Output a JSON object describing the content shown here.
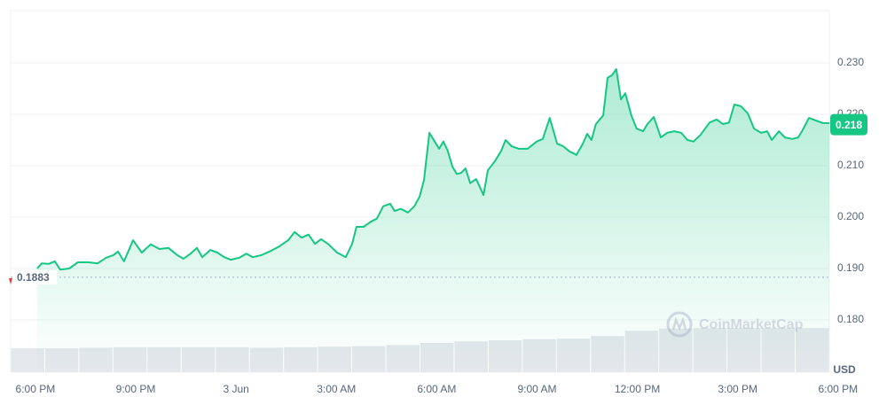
{
  "chart_data": {
    "type": "line",
    "color": "#16c784",
    "x": [
      0.05,
      0.19,
      0.4,
      0.58,
      0.74,
      1.01,
      1.27,
      1.59,
      1.86,
      2.12,
      2.33,
      2.47,
      2.65,
      2.92,
      3.18,
      3.45,
      3.71,
      3.98,
      4.24,
      4.43,
      4.64,
      4.83,
      4.99,
      5.23,
      5.44,
      5.65,
      5.84,
      6.1,
      6.31,
      6.5,
      6.76,
      7.03,
      7.29,
      7.56,
      7.75,
      7.96,
      8.17,
      8.36,
      8.54,
      8.75,
      9.02,
      9.28,
      9.47,
      9.6,
      9.81,
      10.03,
      10.21,
      10.4,
      10.61,
      10.74,
      10.93,
      11.14,
      11.33,
      11.49,
      11.62,
      11.78,
      11.94,
      12.07,
      12.2,
      12.33,
      12.47,
      12.6,
      12.73,
      12.86,
      13.0,
      13.18,
      13.4,
      13.53,
      13.74,
      13.93,
      14.06,
      14.24,
      14.46,
      14.72,
      14.99,
      15.17,
      15.38,
      15.6,
      15.78,
      15.97,
      16.18,
      16.37,
      16.5,
      16.63,
      16.76,
      16.98,
      17.11,
      17.24,
      17.37,
      17.51,
      17.64,
      17.82,
      17.98,
      18.17,
      18.3,
      18.49,
      18.7,
      18.89,
      19.1,
      19.31,
      19.5,
      19.68,
      19.89,
      20.16,
      20.37,
      20.56,
      20.74,
      20.9,
      21.09,
      21.3,
      21.49,
      21.7,
      21.88,
      22.02,
      22.23,
      22.41,
      22.63,
      22.81,
      22.94,
      23.13,
      23.34,
      23.55,
      23.74
    ],
    "values": [
      0.19,
      0.191,
      0.1909,
      0.1914,
      0.1898,
      0.19,
      0.1912,
      0.1912,
      0.191,
      0.1921,
      0.1926,
      0.1933,
      0.1914,
      0.1955,
      0.1931,
      0.1947,
      0.1938,
      0.194,
      0.1926,
      0.1919,
      0.1929,
      0.194,
      0.1922,
      0.1936,
      0.1931,
      0.1922,
      0.1917,
      0.1921,
      0.1929,
      0.1922,
      0.1926,
      0.1934,
      0.1943,
      0.1955,
      0.1971,
      0.196,
      0.1966,
      0.1948,
      0.1957,
      0.1948,
      0.1931,
      0.1922,
      0.1948,
      0.1981,
      0.1981,
      0.1991,
      0.1997,
      0.2021,
      0.2026,
      0.2012,
      0.2016,
      0.2009,
      0.2021,
      0.204,
      0.2072,
      0.2164,
      0.2147,
      0.2133,
      0.2147,
      0.2129,
      0.2098,
      0.2084,
      0.2086,
      0.2095,
      0.2066,
      0.2074,
      0.2043,
      0.2091,
      0.2109,
      0.2129,
      0.215,
      0.2138,
      0.2133,
      0.2133,
      0.2147,
      0.2152,
      0.2193,
      0.2143,
      0.2138,
      0.2128,
      0.2121,
      0.2143,
      0.2162,
      0.215,
      0.2181,
      0.2198,
      0.2271,
      0.2276,
      0.2288,
      0.2229,
      0.2241,
      0.2198,
      0.2172,
      0.2167,
      0.2181,
      0.2195,
      0.2155,
      0.2164,
      0.2167,
      0.2164,
      0.215,
      0.2147,
      0.216,
      0.2184,
      0.219,
      0.2181,
      0.2184,
      0.2219,
      0.2216,
      0.2202,
      0.2172,
      0.2164,
      0.2167,
      0.215,
      0.2167,
      0.2155,
      0.2152,
      0.2155,
      0.2169,
      0.2193,
      0.2188,
      0.2183,
      0.2183
    ],
    "xlim": [
      -0.74,
      23.74
    ],
    "xticks": [
      {
        "value": 0,
        "label": "6:00 PM"
      },
      {
        "value": 3,
        "label": "9:00 PM"
      },
      {
        "value": 6,
        "label": "3 Jun"
      },
      {
        "value": 9,
        "label": "3:00 AM"
      },
      {
        "value": 12,
        "label": "6:00 AM"
      },
      {
        "value": 15,
        "label": "9:00 AM"
      },
      {
        "value": 18,
        "label": "12:00 PM"
      },
      {
        "value": 21,
        "label": "3:00 PM"
      },
      {
        "value": 24,
        "label": "6:00 PM"
      }
    ],
    "ylim": [
      0.17,
      0.24
    ],
    "yticks": [
      {
        "value": 0.18,
        "label": "0.180"
      },
      {
        "value": 0.19,
        "label": "0.190"
      },
      {
        "value": 0.2,
        "label": "0.200"
      },
      {
        "value": 0.21,
        "label": "0.210"
      },
      {
        "value": 0.22,
        "label": "0.220"
      },
      {
        "value": 0.23,
        "label": "0.230"
      }
    ],
    "grid": true,
    "currency": "USD",
    "reference_value": 0.1883,
    "current_price": 0.218,
    "watermark": "CoinMarketCap",
    "volume": {
      "color": "#e4e7ec",
      "values": [
        45,
        45,
        46,
        47,
        47,
        47,
        47,
        46,
        47,
        48,
        49,
        51,
        55,
        58,
        60,
        62,
        63,
        68,
        78,
        82,
        83,
        83,
        83,
        83
      ]
    }
  }
}
